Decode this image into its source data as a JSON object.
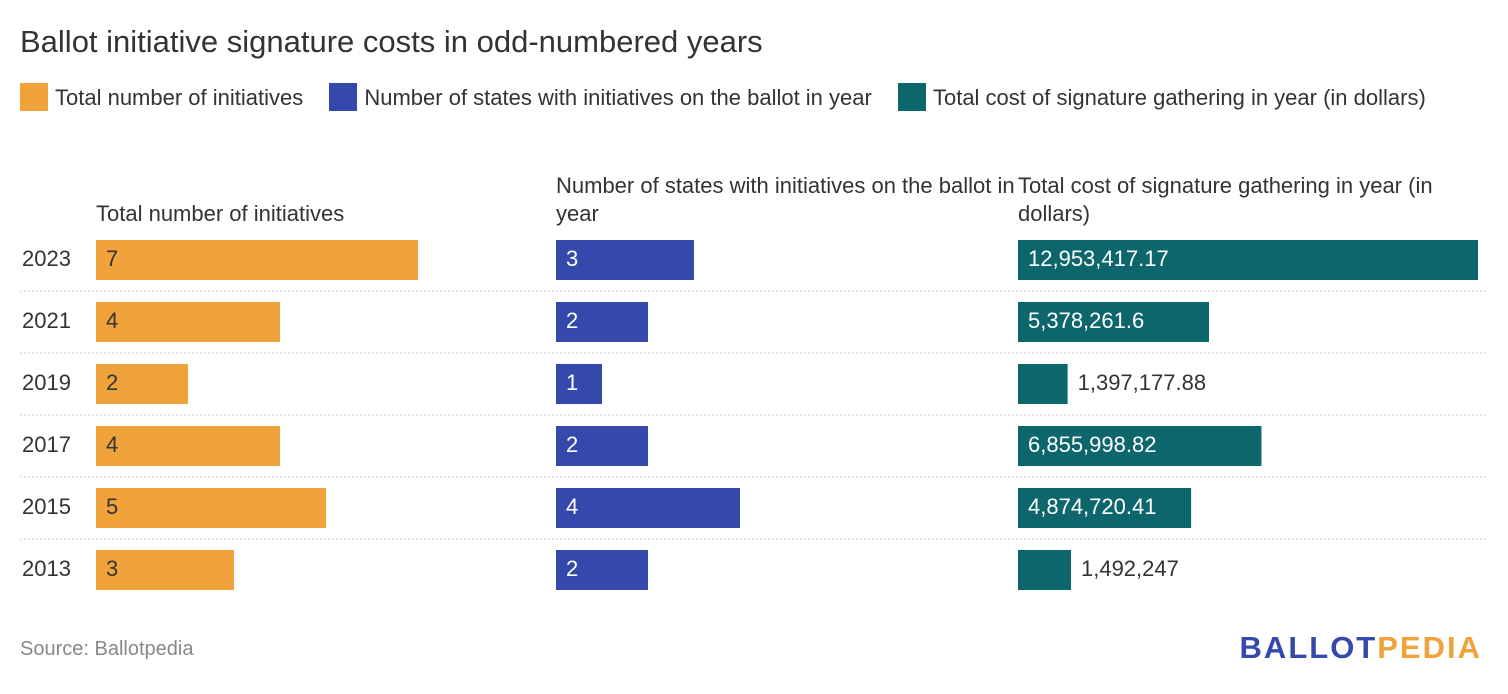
{
  "chart_data": {
    "type": "bar",
    "title": "Ballot initiative signature costs in odd-numbered years",
    "categories": [
      "2023",
      "2021",
      "2019",
      "2017",
      "2015",
      "2013"
    ],
    "series": [
      {
        "name": "Total number of initiatives",
        "color": "#f0a33a",
        "values": [
          7,
          4,
          2,
          4,
          5,
          3
        ]
      },
      {
        "name": "Number of states with initiatives on the ballot in year",
        "color": "#3449ab",
        "values": [
          3,
          2,
          1,
          2,
          4,
          2
        ]
      },
      {
        "name": "Total cost of signature gathering in year (in dollars)",
        "color": "#0e666d",
        "values": [
          12953417.17,
          5378261.6,
          1397177.88,
          6855998.82,
          4874720.41,
          1492247
        ],
        "value_labels": [
          "12,953,417.17",
          "5,378,261.6",
          "1,397,177.88",
          "6,855,998.82",
          "4,874,720.41",
          "1,492,247"
        ]
      }
    ],
    "source": "Source: Ballotpedia"
  },
  "logo": [
    "BALLOT",
    "PEDIA"
  ]
}
